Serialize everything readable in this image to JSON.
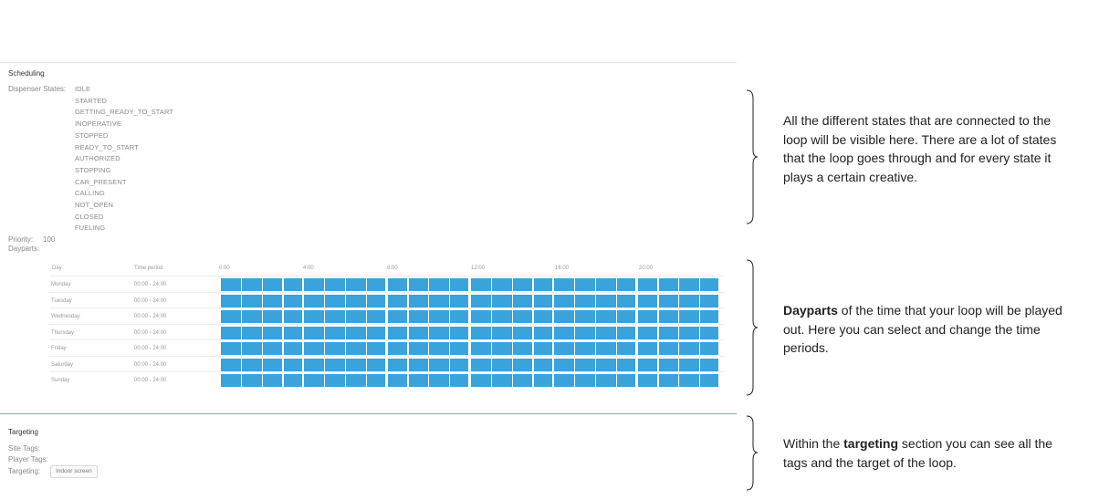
{
  "scheduling": {
    "title": "Scheduling",
    "dispenser_states_label": "Dispenser States:",
    "states": [
      "IDLE",
      "STARTED",
      "GETTING_READY_TO_START",
      "INOPERATIVE",
      "STOPPED",
      "READY_TO_START",
      "AUTHORIZED",
      "STOPPING",
      "CAR_PRESENT",
      "CALLING",
      "NOT_OPEN",
      "CLOSED",
      "FUELING"
    ],
    "priority_label": "Priority:",
    "priority_value": "100",
    "dayparts_label": "Dayparts:"
  },
  "dayparts_table": {
    "col_day": "Day",
    "col_period": "Time period",
    "time_ticks": [
      "0:00",
      "4:00",
      "8:00",
      "12:00",
      "16:00",
      "20:00"
    ],
    "rows": [
      {
        "day": "Monday",
        "period": "00:00 - 24:00"
      },
      {
        "day": "Tuesday",
        "period": "00:00 - 24:00"
      },
      {
        "day": "Wednesday",
        "period": "00:00 - 24:00"
      },
      {
        "day": "Thursday",
        "period": "00:00 - 24:00"
      },
      {
        "day": "Friday",
        "period": "00:00 - 24:00"
      },
      {
        "day": "Saturday",
        "period": "00:00 - 24:00"
      },
      {
        "day": "Sunday",
        "period": "00:00 - 24:00"
      }
    ],
    "block_color": "#3aa3dc"
  },
  "targeting": {
    "title": "Targeting",
    "site_tags_label": "Site Tags:",
    "player_tags_label": "Player Tags:",
    "targeting_label": "Targeting:",
    "targeting_tag": "Indoor screen"
  },
  "annotations": {
    "states_note": "All the different states that are connected to the loop will be visible here. There are a lot of states that the loop goes through and for every state it plays a certain creative.",
    "dayparts_bold": "Dayparts",
    "dayparts_rest": " of the time that your loop will be played out. Here you can select and change the time periods.",
    "targeting_pre": "Within the ",
    "targeting_bold": "targeting",
    "targeting_rest": " section you can see all the tags and the target of the loop."
  }
}
